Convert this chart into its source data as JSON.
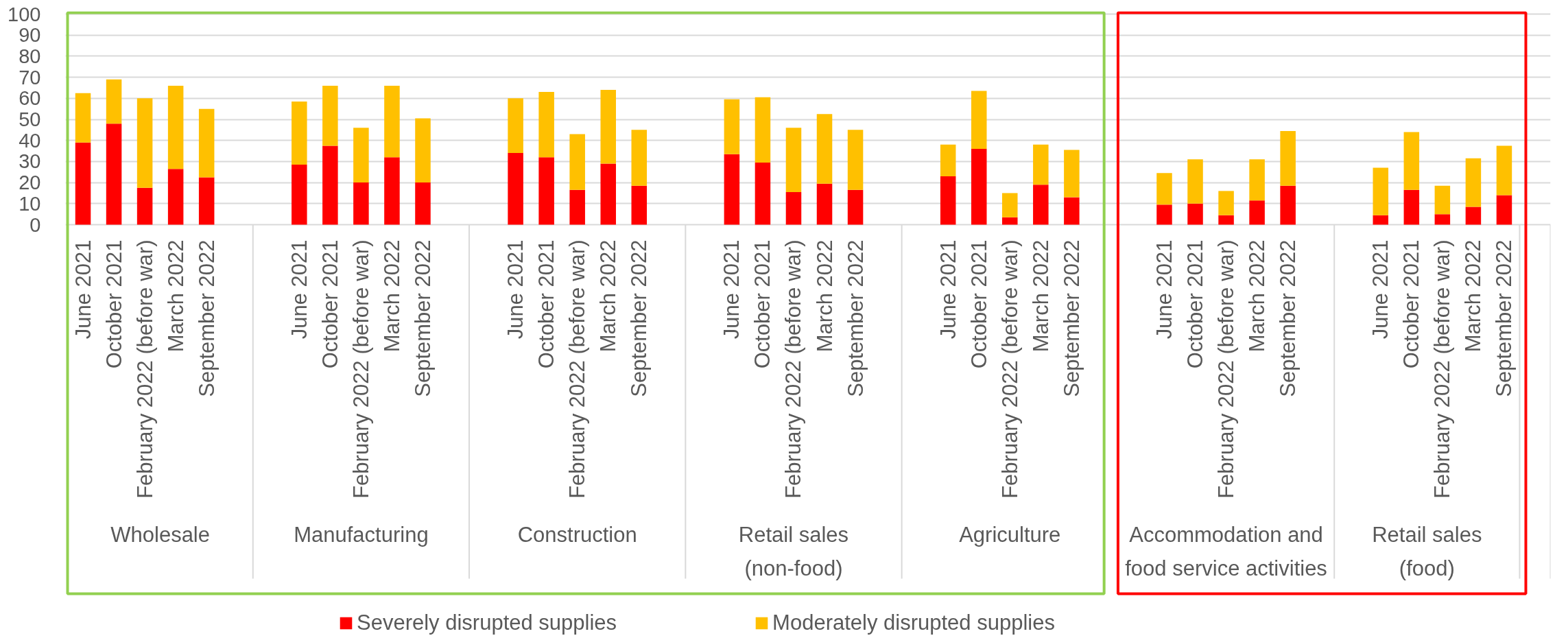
{
  "chart_data": {
    "type": "bar",
    "stacked": true,
    "categories": [
      "June 2021",
      "October 2021",
      "February 2022 (before war)",
      "March 2022",
      "September 2022",
      "June 2021",
      "October 2021",
      "February 2022 (before war)",
      "March 2022",
      "September 2022",
      "June 2021",
      "October 2021",
      "February 2022 (before war)",
      "March 2022",
      "September 2022",
      "June 2021",
      "October 2021",
      "February 2022 (before war)",
      "March 2022",
      "September 2022",
      "June 2021",
      "October 2021",
      "February 2022 (before war)",
      "March 2022",
      "September 2022",
      "June 2021",
      "October 2021",
      "February 2022 (before war)",
      "March 2022",
      "September 2022",
      "June 2021",
      "October 2021",
      "February 2022 (before war)",
      "March 2022",
      "September 2022"
    ],
    "series": [
      {
        "name": "Severely disrupted supplies",
        "color": "#ff0000",
        "values": [
          39,
          48,
          17.5,
          26.5,
          22.5,
          28.5,
          37.5,
          20,
          32,
          20,
          34,
          32,
          16.5,
          29,
          18.5,
          33.5,
          29.5,
          15.5,
          19.5,
          16.5,
          23,
          36,
          3.5,
          19,
          13,
          9.5,
          10,
          4.5,
          11.5,
          18.5,
          4.5,
          16.5,
          5,
          8.5,
          14
        ]
      },
      {
        "name": "Moderately disrupted supplies",
        "color": "#ffc000",
        "values": [
          23.5,
          21,
          42.5,
          39.5,
          32.5,
          30,
          28.5,
          26,
          34,
          30.5,
          26,
          31,
          26.5,
          35,
          26.5,
          26,
          31,
          30.5,
          33,
          28.5,
          15,
          27.5,
          11.5,
          19,
          22.5,
          15,
          21,
          11.5,
          19.5,
          26,
          22.5,
          27.5,
          13.5,
          23,
          23.5
        ]
      }
    ],
    "annotations": [
      "Wholesale",
      "Manufacturing",
      "Construction",
      "Retail sales\n(non-food)",
      "Agriculture",
      "Accommodation and\nfood service activities",
      "Retail sales\n(food)"
    ],
    "ylim": [
      0,
      100
    ],
    "yticks": [
      0,
      10,
      20,
      30,
      40,
      50,
      60,
      70,
      80,
      90,
      100
    ],
    "grid": "y",
    "legend": "bottom"
  }
}
